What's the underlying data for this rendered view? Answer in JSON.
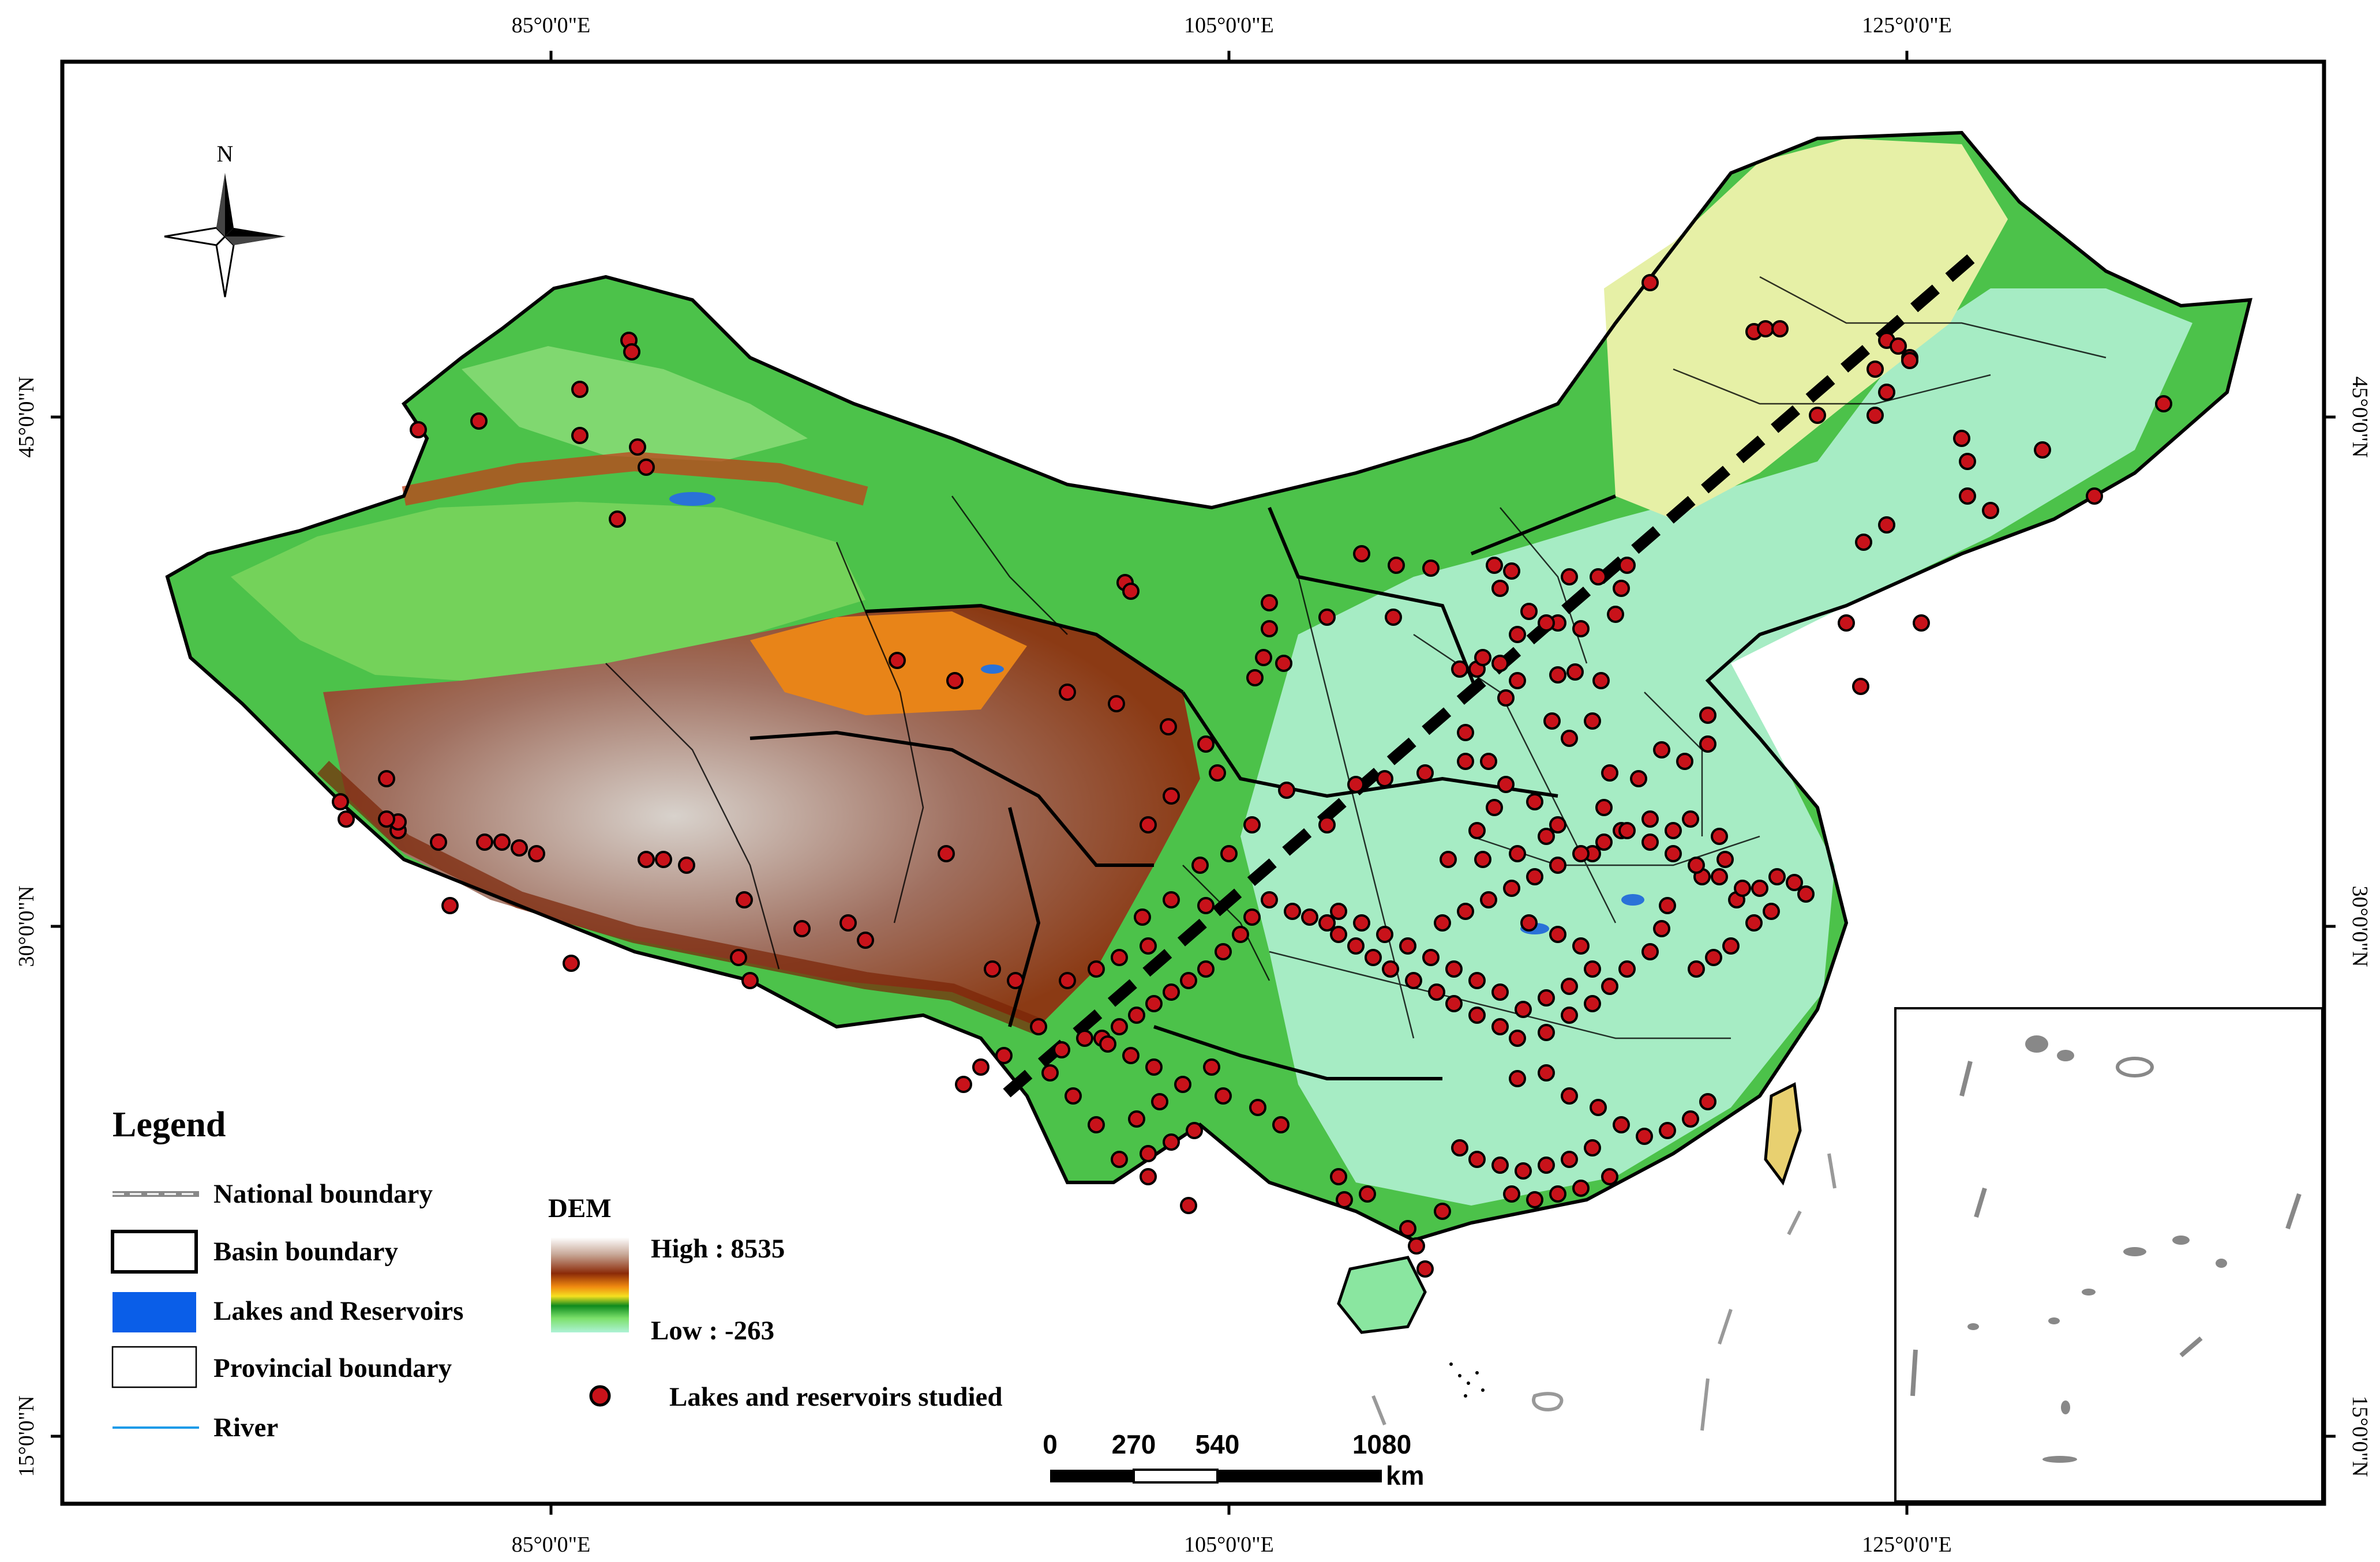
{
  "graticule": {
    "top_labels": [
      "85°0'0\"E",
      "105°0'0\"E",
      "125°0'0\"E"
    ],
    "bottom_labels": [
      "85°0'0\"E",
      "105°0'0\"E",
      "125°0'0\"E"
    ],
    "left_labels": [
      "45°0'0\"N",
      "30°0'0\"N",
      "15°0'0\"N"
    ],
    "right_labels": [
      "45°0'0\"N",
      "30°0'0\"N",
      "15°0'0\"N"
    ]
  },
  "north_arrow": {
    "label": "N"
  },
  "legend": {
    "title": "Legend",
    "items": [
      {
        "label": "National boundary",
        "symbol": "national-boundary"
      },
      {
        "label": "Basin boundary",
        "symbol": "basin-boundary"
      },
      {
        "label": "Lakes and Reservoirs",
        "symbol": "lakes-reservoirs",
        "color": "#0a5ee8"
      },
      {
        "label": "Provincial boundary",
        "symbol": "provincial-boundary"
      },
      {
        "label": "River",
        "symbol": "river",
        "color": "#1e9be8"
      }
    ],
    "dem": {
      "title": "DEM",
      "high": "High : 8535",
      "low": "Low : -263"
    },
    "points": {
      "label": "Lakes and reservoirs studied",
      "color": "#c8121a"
    }
  },
  "scale_bar": {
    "ticks": [
      "0",
      "270",
      "540",
      "1080"
    ],
    "unit": "km"
  },
  "colors": {
    "dem_low": "#aef2d6",
    "dem_green": "#1f9e2a",
    "dem_high": "#8b2a08",
    "dem_peak": "#ffffff",
    "points": "#c8121a"
  }
}
